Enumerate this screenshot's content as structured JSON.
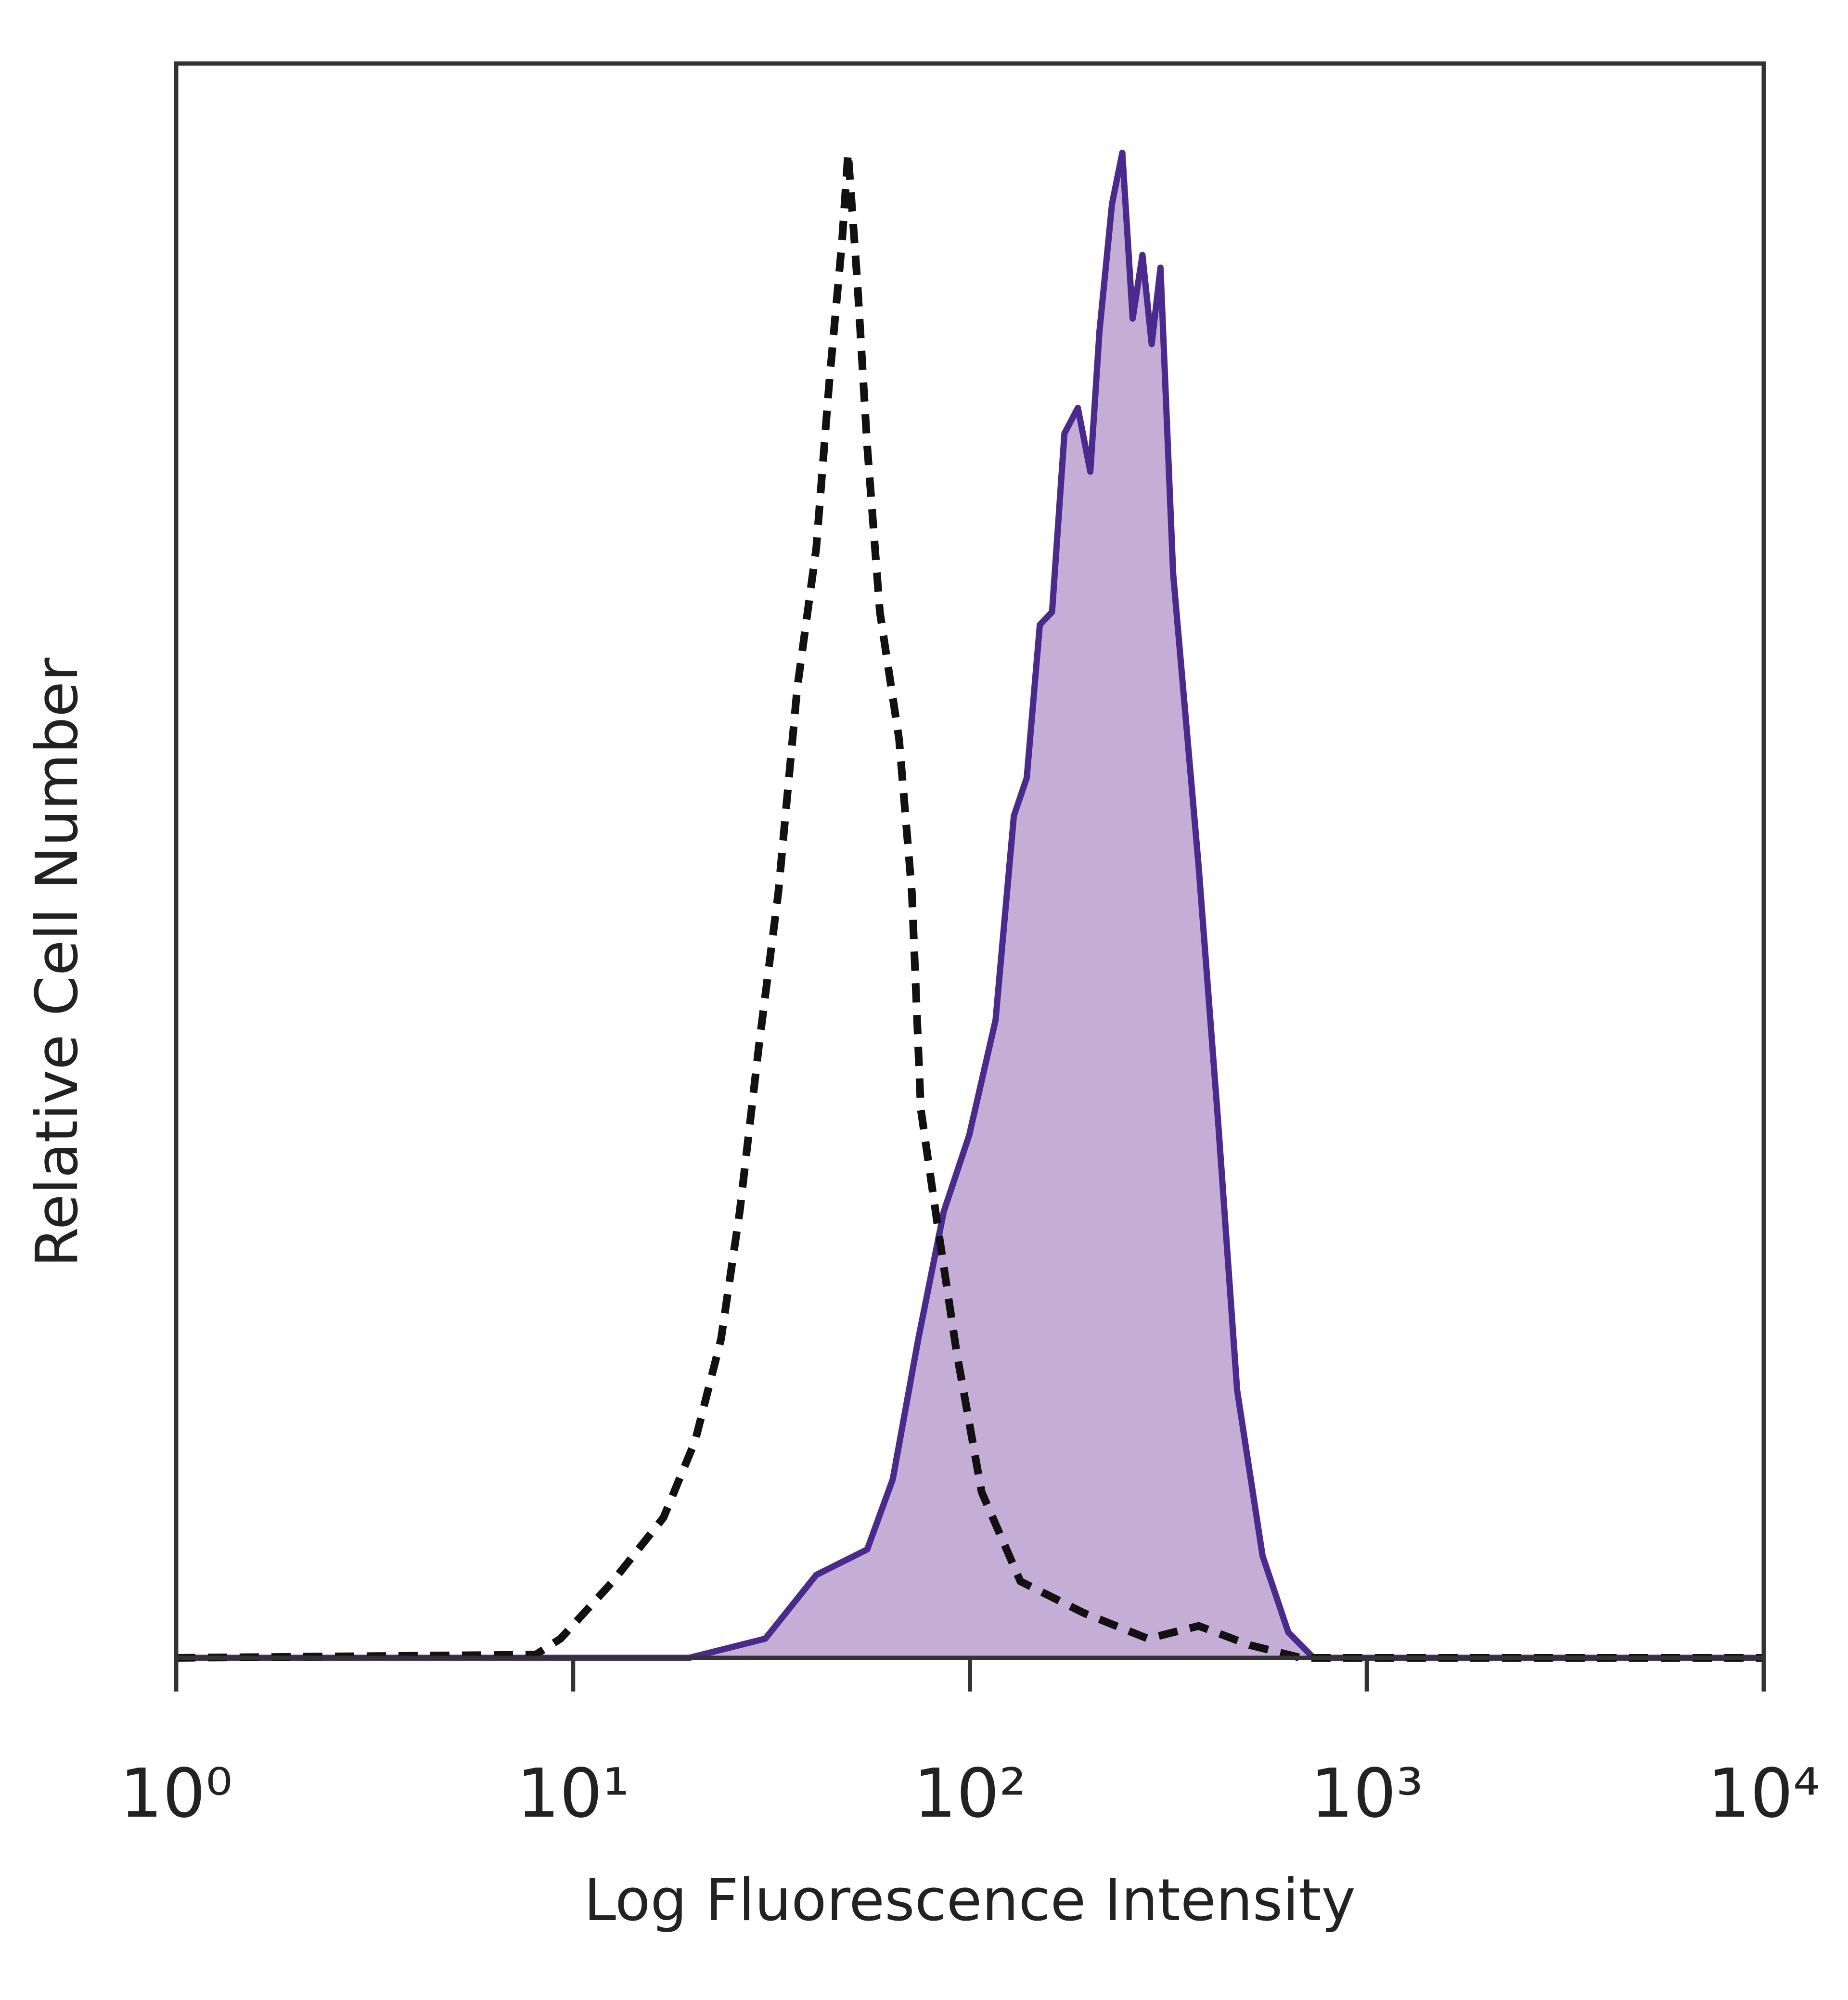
{
  "chart_data": {
    "type": "histogram-overlay",
    "xlabel": "Log Fluorescence Intensity",
    "ylabel": "Relative Cell Number",
    "xscale": "log",
    "xlim": [
      1,
      10000
    ],
    "xticks": [
      {
        "value": 1,
        "label": "10⁰"
      },
      {
        "value": 10,
        "label": "10¹"
      },
      {
        "value": 100,
        "label": "10²"
      },
      {
        "value": 1000,
        "label": "10³"
      },
      {
        "value": 10000,
        "label": "10⁴"
      }
    ],
    "ylim": [
      0,
      100
    ],
    "series": [
      {
        "color": "#4a2a8c",
        "fill": "#c4aed6",
        "dashed": false,
        "x": [
          1,
          19.6,
          30.5,
          41.0,
          55.1,
          63.9,
          74.1,
          85.9,
          99.6,
          116,
          129,
          139,
          150,
          161,
          173,
          187,
          201,
          212,
          228,
          242,
          257,
          272,
          287,
          302,
          325,
          377,
          422,
          471,
          546,
          634,
          734,
          10000
        ],
        "values": [
          0,
          0,
          1.2,
          5.2,
          6.8,
          11.2,
          20,
          28,
          32.8,
          40,
          52.8,
          55.2,
          64.8,
          65.6,
          76.8,
          78.4,
          74.4,
          83.2,
          91.2,
          94.4,
          84,
          88,
          82.4,
          87.2,
          68,
          49.6,
          33.6,
          16.8,
          6.4,
          1.6,
          0,
          0
        ]
      },
      {
        "color": "#111111",
        "fill": null,
        "dashed": true,
        "x": [
          1,
          8.05,
          9.3,
          12.6,
          16.9,
          20.3,
          23.6,
          26.3,
          29.4,
          32.9,
          36.7,
          41.0,
          44.2,
          47.6,
          49.3,
          52.0,
          55.1,
          59.3,
          66.3,
          71.4,
          75.2,
          82.8,
          92.5,
          107,
          134,
          194,
          281,
          377,
          507,
          682,
          10000
        ],
        "values": [
          0,
          0.2,
          1.2,
          4.8,
          8.8,
          13.6,
          20,
          28,
          38.4,
          48,
          60.8,
          69.6,
          80,
          88.8,
          94.4,
          86.4,
          76,
          65.6,
          57.6,
          48,
          34.4,
          27.2,
          19.2,
          10.4,
          4.8,
          2.8,
          1.2,
          2,
          0.8,
          0,
          0
        ]
      }
    ]
  }
}
